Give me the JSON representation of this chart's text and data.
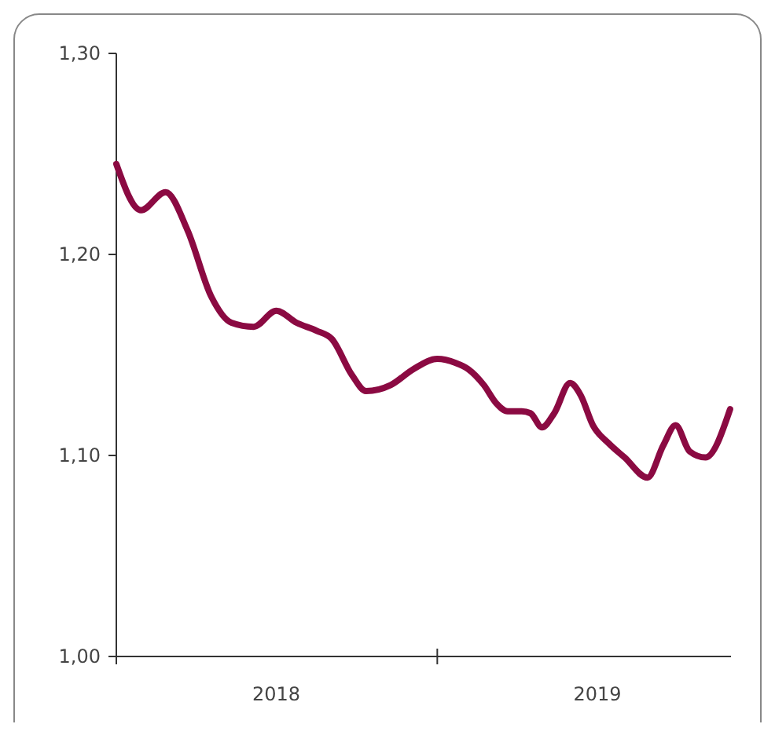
{
  "chart_data": {
    "type": "line",
    "xlim": [
      "2018-01-01",
      "2019-12-01"
    ],
    "ylim": [
      1.0,
      1.3
    ],
    "yticks": [
      {
        "value": 1.0,
        "label": "1,00"
      },
      {
        "value": 1.1,
        "label": "1,10"
      },
      {
        "value": 1.2,
        "label": "1,20"
      },
      {
        "value": 1.3,
        "label": "1,30"
      }
    ],
    "xticks": [
      {
        "value": "2018-01-01",
        "label": null
      },
      {
        "value": "2018-07-02",
        "label": "2018"
      },
      {
        "value": "2019-01-01",
        "label": null
      },
      {
        "value": "2019-07-02",
        "label": "2019"
      }
    ],
    "grid": false,
    "marker": "none",
    "line_style": "solid",
    "series": [
      {
        "color": "#8b0a42",
        "x": [
          "2018-01-01",
          "2018-01-29",
          "2018-02-26",
          "2018-03-23",
          "2018-04-19",
          "2018-05-12",
          "2018-06-06",
          "2018-07-02",
          "2018-07-25",
          "2018-08-17",
          "2018-09-03",
          "2018-09-26",
          "2018-10-12",
          "2018-11-09",
          "2018-12-05",
          "2019-01-01",
          "2019-01-22",
          "2019-02-05",
          "2019-02-23",
          "2019-03-09",
          "2019-03-22",
          "2019-04-07",
          "2019-04-17",
          "2019-04-30",
          "2019-05-14",
          "2019-06-01",
          "2019-06-13",
          "2019-06-27",
          "2019-07-15",
          "2019-08-02",
          "2019-08-28",
          "2019-09-15",
          "2019-09-29",
          "2019-10-15",
          "2019-11-02",
          "2019-11-30"
        ],
        "values": [
          1.245,
          1.222,
          1.231,
          1.212,
          1.179,
          1.166,
          1.164,
          1.172,
          1.166,
          1.162,
          1.158,
          1.14,
          1.132,
          1.135,
          1.143,
          1.148,
          1.146,
          1.143,
          1.135,
          1.126,
          1.122,
          1.122,
          1.121,
          1.114,
          1.121,
          1.136,
          1.13,
          1.115,
          1.106,
          1.099,
          1.089,
          1.105,
          1.115,
          1.102,
          1.099,
          1.123
        ]
      }
    ]
  }
}
